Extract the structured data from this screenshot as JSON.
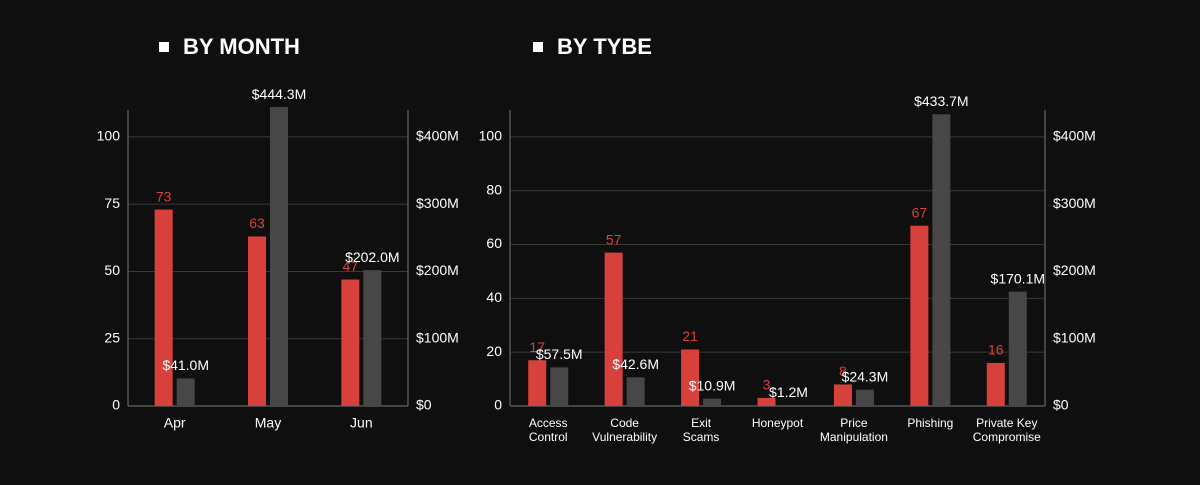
{
  "chart_data": [
    {
      "type": "bar",
      "title": "BY MONTH",
      "categories": [
        "Apr",
        "May",
        "Jun"
      ],
      "ylim": [
        0,
        110
      ],
      "yticks": [
        0,
        25,
        50,
        75,
        100
      ],
      "y2lim": [
        0,
        440000000
      ],
      "y2ticks": [
        {
          "value": 0,
          "label": "$0"
        },
        {
          "value": 100000000,
          "label": "$100M"
        },
        {
          "value": 200000000,
          "label": "$200M"
        },
        {
          "value": 300000000,
          "label": "$300M"
        },
        {
          "value": 400000000,
          "label": "$400M"
        }
      ],
      "grid": true,
      "series": [
        {
          "color": "#d8413b",
          "values": [
            73,
            63,
            47
          ]
        },
        {
          "color": "#474747",
          "axis": "y2",
          "values": [
            41000000,
            444300000,
            202000000
          ],
          "value_labels": [
            "$41.0M",
            "$444.3M",
            "$202.0M"
          ]
        }
      ]
    },
    {
      "type": "bar",
      "title": "BY TYBE",
      "categories": [
        [
          "Access",
          "Control"
        ],
        [
          "Code",
          "Vulnerability"
        ],
        [
          "Exit",
          "Scams"
        ],
        [
          "Honeypot"
        ],
        [
          "Price",
          "Manipulation"
        ],
        [
          "Phishing"
        ],
        [
          "Private Key",
          "Compromise"
        ]
      ],
      "ylim": [
        0,
        110
      ],
      "yticks": [
        0,
        20,
        40,
        60,
        80,
        100
      ],
      "y2lim": [
        0,
        440000000
      ],
      "y2ticks": [
        {
          "value": 0,
          "label": "$0"
        },
        {
          "value": 100000000,
          "label": "$100M"
        },
        {
          "value": 200000000,
          "label": "$200M"
        },
        {
          "value": 300000000,
          "label": "$300M"
        },
        {
          "value": 400000000,
          "label": "$400M"
        }
      ],
      "grid": true,
      "series": [
        {
          "color": "#d8413b",
          "values": [
            17,
            57,
            21,
            3,
            8,
            67,
            16
          ]
        },
        {
          "color": "#474747",
          "axis": "y2",
          "values": [
            57500000,
            42600000,
            10900000,
            1200000,
            24300000,
            433700000,
            170100000
          ],
          "value_labels": [
            "$57.5M",
            "$42.6M",
            "$10.9M",
            "$1.2M",
            "$24.3M",
            "$433.7M",
            "$170.1M"
          ]
        }
      ]
    }
  ]
}
